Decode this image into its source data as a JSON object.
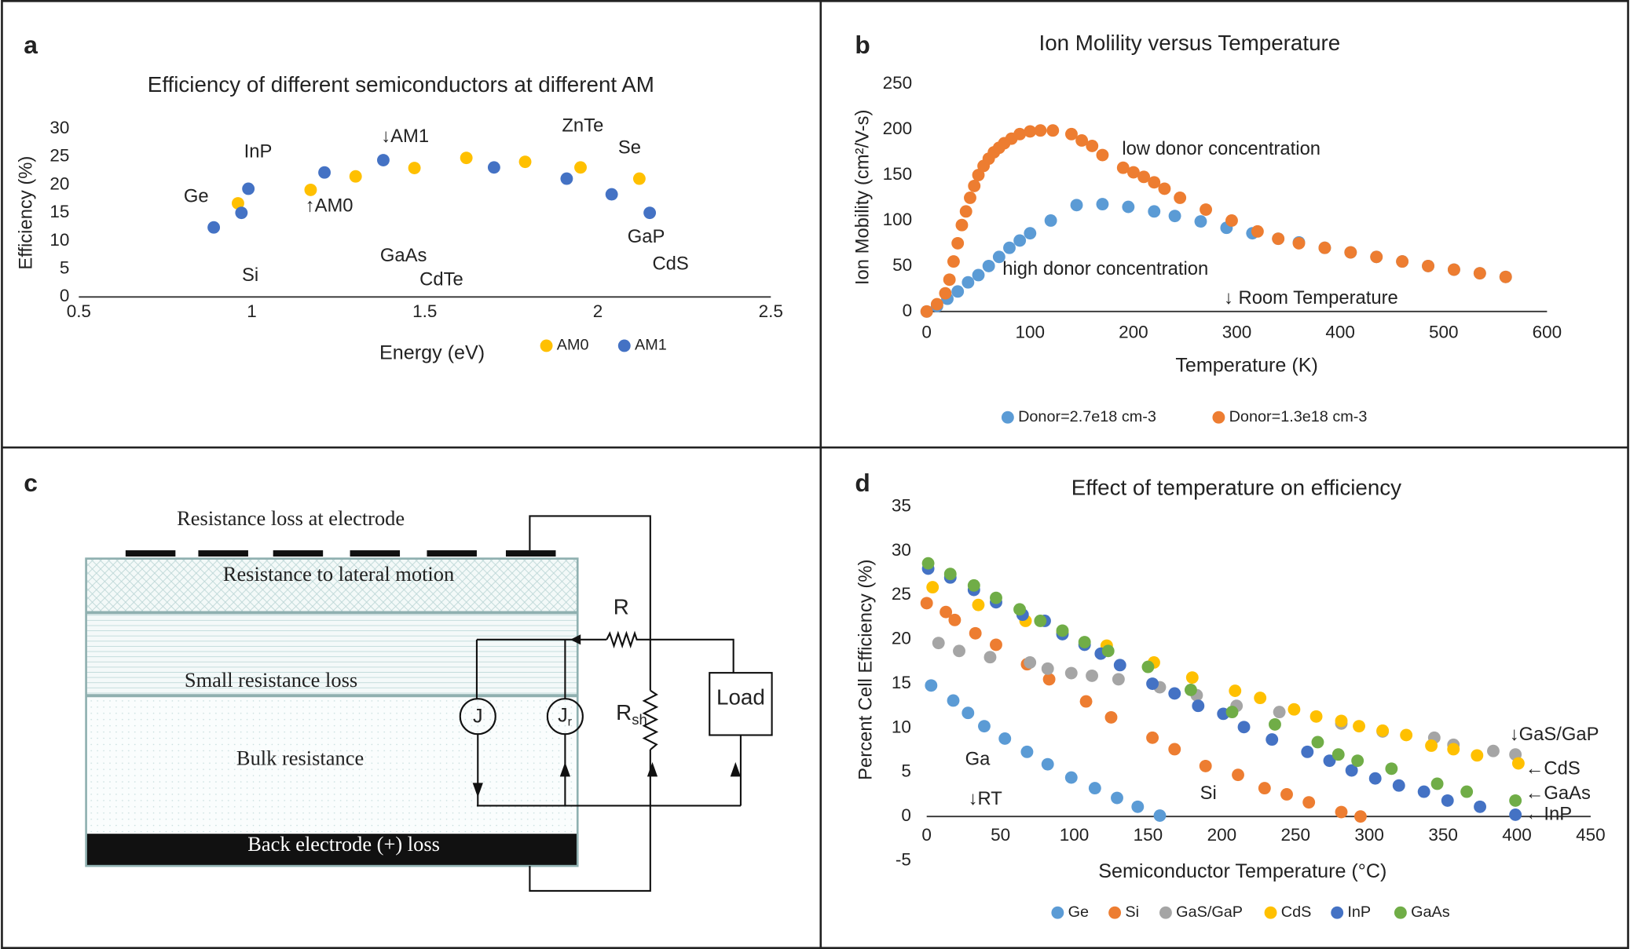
{
  "panel_labels": [
    "a",
    "b",
    "c",
    "d"
  ],
  "chart_data": [
    {
      "type": "scatter",
      "title": "Efficiency of different semiconductors at different AM",
      "x_label": "Energy (eV)",
      "y_label": "Efficiency (%)",
      "xlim": [
        0.5,
        2.5
      ],
      "xticks": [
        0.5,
        1,
        1.5,
        2,
        2.5
      ],
      "ylim": [
        0,
        30
      ],
      "yticks": [
        0,
        5,
        10,
        15,
        20,
        25,
        30
      ],
      "grid": false,
      "legend": "bottom-right",
      "series": [
        {
          "name": "AM0",
          "color": "#ffc000",
          "x": [
            0.96,
            1.17,
            1.3,
            1.47,
            1.62,
            1.79,
            1.95,
            2.12
          ],
          "values": [
            16.7,
            19.1,
            21.5,
            23.0,
            24.8,
            24.1,
            23.1,
            21.1
          ]
        },
        {
          "name": "AM1",
          "color": "#4472c4",
          "x": [
            0.89,
            0.97,
            0.99,
            1.21,
            1.38,
            1.7,
            1.91,
            2.04,
            2.15
          ],
          "values": [
            12.4,
            15.0,
            19.3,
            22.2,
            24.4,
            23.1,
            21.1,
            18.3,
            15.0
          ]
        }
      ],
      "annotations": [
        "Ge",
        "InP",
        "Si",
        "↑AM0",
        "↓AM1",
        "GaAs",
        "CdTe",
        "ZnTe",
        "Se",
        "GaP",
        "CdS"
      ]
    },
    {
      "type": "scatter",
      "title": "Ion Molility versus Temperature",
      "x_label": "Temperature (K)",
      "y_label": "Ion Mobility (cm²/V-s)",
      "xlim": [
        0,
        600
      ],
      "xticks": [
        0,
        100,
        200,
        300,
        400,
        500,
        600
      ],
      "ylim": [
        0,
        250
      ],
      "yticks": [
        0,
        50,
        100,
        150,
        200,
        250
      ],
      "grid": false,
      "legend": "bottom",
      "series": [
        {
          "name": "Donor=2.7e18 cm-3",
          "color": "#5b9bd5",
          "x": [
            0,
            10,
            20,
            30,
            40,
            50,
            60,
            70,
            80,
            90,
            100,
            120,
            145,
            170,
            195,
            220,
            240,
            265,
            290,
            315,
            340,
            360,
            385,
            410,
            435,
            460,
            485,
            510,
            535,
            560
          ],
          "values": [
            0,
            6,
            14,
            22,
            32,
            40,
            50,
            60,
            70,
            78,
            86,
            100,
            117,
            118,
            115,
            110,
            105,
            99,
            92,
            86,
            80,
            76,
            70,
            65,
            60,
            55,
            50,
            46,
            42,
            38
          ]
        },
        {
          "name": "Donor=1.3e18 cm-3",
          "color": "#ed7d31",
          "x": [
            0,
            10,
            18,
            22,
            26,
            30,
            34,
            38,
            42,
            46,
            50,
            55,
            60,
            65,
            70,
            75,
            82,
            90,
            100,
            110,
            122,
            140,
            150,
            160,
            170,
            190,
            200,
            210,
            220,
            230,
            245,
            270,
            295,
            320,
            340,
            360,
            385,
            410,
            435,
            460,
            485,
            510,
            535,
            560
          ],
          "values": [
            0,
            8,
            20,
            35,
            55,
            75,
            95,
            110,
            125,
            138,
            150,
            160,
            168,
            175,
            180,
            185,
            190,
            195,
            198,
            199,
            199,
            195,
            188,
            182,
            172,
            158,
            153,
            148,
            142,
            135,
            125,
            112,
            100,
            88,
            80,
            75,
            70,
            65,
            60,
            55,
            50,
            46,
            42,
            38
          ]
        }
      ],
      "annotations": [
        "low donor concentration",
        "high donor concentration",
        "↓ Room Temperature"
      ]
    },
    {
      "type": "scatter",
      "title": "Effect of temperature on efficiency",
      "x_label": "Semiconductor Temperature (°C)",
      "y_label": "Percent Cell Efficiency (%)",
      "xlim": [
        0,
        450
      ],
      "xticks": [
        0,
        50,
        100,
        150,
        200,
        250,
        300,
        350,
        400,
        450
      ],
      "ylim": [
        -5,
        35
      ],
      "yticks": [
        -5,
        0,
        5,
        10,
        15,
        20,
        25,
        30,
        35
      ],
      "grid": false,
      "legend": "bottom",
      "series": [
        {
          "name": "Ge",
          "color": "#5b9bd5",
          "x": [
            3,
            18,
            28,
            39,
            53,
            68,
            82,
            98,
            114,
            129,
            143,
            158
          ],
          "values": [
            14.8,
            13.1,
            11.7,
            10.2,
            8.8,
            7.3,
            5.9,
            4.4,
            3.2,
            2.1,
            1.1,
            0.1
          ]
        },
        {
          "name": "Si",
          "color": "#ed7d31",
          "x": [
            0,
            13,
            19,
            33,
            47,
            68,
            83,
            108,
            125,
            153,
            168,
            189,
            211,
            229,
            244,
            259,
            281,
            294
          ],
          "values": [
            24.1,
            23.1,
            22.2,
            20.7,
            19.4,
            17.2,
            15.5,
            13.0,
            11.2,
            8.9,
            7.6,
            5.7,
            4.7,
            3.2,
            2.5,
            1.6,
            0.5,
            0.0
          ]
        },
        {
          "name": "GaS/GaP",
          "color": "#a5a5a5",
          "x": [
            8,
            22,
            43,
            70,
            82,
            98,
            112,
            130,
            158,
            183,
            210,
            239,
            281,
            309,
            344,
            357,
            384,
            399
          ],
          "values": [
            19.6,
            18.7,
            18.0,
            17.4,
            16.7,
            16.2,
            15.9,
            15.5,
            14.6,
            13.7,
            12.5,
            11.8,
            10.5,
            9.6,
            8.9,
            8.1,
            7.4,
            7.0
          ]
        },
        {
          "name": "CdS",
          "color": "#ffc000",
          "x": [
            4,
            35,
            67,
            92,
            122,
            154,
            180,
            209,
            226,
            249,
            264,
            281,
            293,
            309,
            325,
            342,
            357,
            373,
            401
          ],
          "values": [
            25.9,
            23.9,
            22.1,
            20.8,
            19.3,
            17.4,
            15.7,
            14.2,
            13.4,
            12.1,
            11.3,
            10.8,
            10.2,
            9.7,
            9.2,
            8.0,
            7.6,
            6.9,
            6.0
          ]
        },
        {
          "name": "InP",
          "color": "#4472c4",
          "x": [
            1,
            16,
            32,
            47,
            65,
            80,
            92,
            107,
            118,
            131,
            153,
            168,
            184,
            201,
            215,
            234,
            258,
            273,
            288,
            304,
            320,
            337,
            353,
            375,
            399
          ],
          "values": [
            28.0,
            27.0,
            25.6,
            24.2,
            22.8,
            22.1,
            20.6,
            19.4,
            18.4,
            17.1,
            15.0,
            13.9,
            12.5,
            11.6,
            10.1,
            8.7,
            7.3,
            6.3,
            5.2,
            4.3,
            3.5,
            2.8,
            1.8,
            1.1,
            0.2
          ]
        },
        {
          "name": "GaAs",
          "color": "#70ad47",
          "x": [
            1,
            16,
            32,
            47,
            63,
            77,
            92,
            107,
            123,
            150,
            179,
            207,
            236,
            265,
            279,
            292,
            315,
            346,
            366,
            399
          ],
          "values": [
            28.6,
            27.4,
            26.1,
            24.7,
            23.4,
            22.1,
            21.0,
            19.7,
            18.7,
            16.9,
            14.3,
            11.8,
            10.4,
            8.4,
            7.0,
            6.3,
            5.4,
            3.7,
            2.8,
            1.8
          ]
        }
      ],
      "annotations": [
        "↓GaS/GaP",
        "←CdS",
        "←GaAs",
        "←InP",
        "Ga",
        "Si",
        "↓RT"
      ]
    }
  ],
  "diagram": {
    "layers": [
      "Resistance loss at electrode",
      "Resistance to lateral motion",
      "Small resistance loss",
      "Bulk resistance",
      "Back electrode (+) loss"
    ],
    "resistor": "R",
    "shunt": {
      "main": "R",
      "sub": "sh"
    },
    "current": "J",
    "recombination": {
      "main": "J",
      "sub": "r"
    },
    "load": "Load"
  }
}
